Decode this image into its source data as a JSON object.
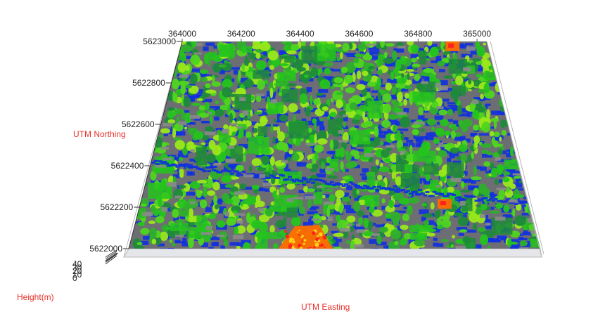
{
  "chart_data": {
    "type": "3d-point-cloud",
    "title": "",
    "xlabel": "UTM Easting",
    "ylabel": "UTM Northing",
    "zlabel": "Height(m)",
    "x_ticks": [
      "364000",
      "364200",
      "364400",
      "364600",
      "364800",
      "365000"
    ],
    "y_ticks": [
      "5622000",
      "5622200",
      "5622400",
      "5622600",
      "5622800",
      "5623000"
    ],
    "z_ticks": [
      "40",
      "30",
      "20",
      "10",
      "0"
    ],
    "xlim": [
      364000,
      365000
    ],
    "ylim": [
      5622000,
      5623000
    ],
    "zlim": [
      0,
      40
    ],
    "grid": false,
    "colormap": {
      "ground": "#8a8a8a",
      "low": "#1030e0",
      "mid_low": "#1f8a3a",
      "mid": "#25c41c",
      "high": "#9be81a",
      "very_high": "#ff6a00",
      "top": "#ff2020"
    },
    "hotspots": [
      {
        "x": 364420,
        "y": 5622040,
        "height_class": "very_high"
      },
      {
        "x": 364780,
        "y": 5622220,
        "height_class": "very_high"
      },
      {
        "x": 364880,
        "y": 5622980,
        "height_class": "very_high"
      }
    ]
  }
}
